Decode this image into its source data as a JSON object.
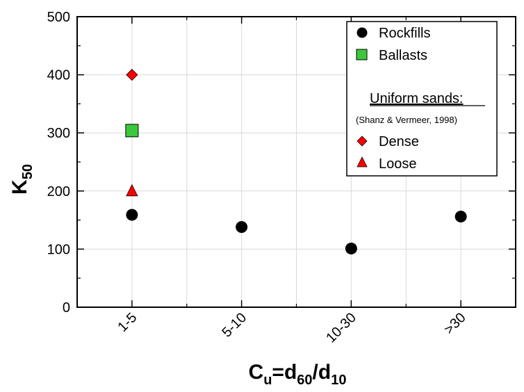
{
  "chart_data": {
    "type": "scatter",
    "title": "",
    "xlabel": {
      "main": "C",
      "main_sub": "u",
      "eq": "=d",
      "d1_sub": "60",
      "slash": "/d",
      "d2_sub": "10"
    },
    "ylabel": {
      "main": "K",
      "sub": "50"
    },
    "categories": [
      "1-5",
      "5-10",
      "10-30",
      ">30"
    ],
    "ylim": [
      0,
      500
    ],
    "yticks": [
      "0",
      "100",
      "200",
      "300",
      "400",
      "500"
    ],
    "ytick_values": [
      0,
      100,
      200,
      300,
      400,
      500
    ],
    "grid": true,
    "legend_position": "top-right",
    "series": [
      {
        "name": "Rockfills",
        "marker": "circle",
        "color": "#000000",
        "points": [
          {
            "x": "1-5",
            "y": 159
          },
          {
            "x": "5-10",
            "y": 138
          },
          {
            "x": "10-30",
            "y": 101
          },
          {
            "x": ">30",
            "y": 156
          }
        ]
      },
      {
        "name": "Ballasts",
        "marker": "square",
        "color": "#3cc83c",
        "points": [
          {
            "x": "1-5",
            "y": 304
          }
        ]
      },
      {
        "name": "Dense",
        "marker": "diamond",
        "color": "#ff0000",
        "points": [
          {
            "x": "1-5",
            "y": 400
          }
        ]
      },
      {
        "name": "Loose",
        "marker": "triangle",
        "color": "#ff0000",
        "points": [
          {
            "x": "1-5",
            "y": 200
          }
        ]
      }
    ],
    "legend": {
      "group_heading": "Uniform sands:",
      "group_source": "(Shanz & Vermeer, 1998)"
    }
  }
}
